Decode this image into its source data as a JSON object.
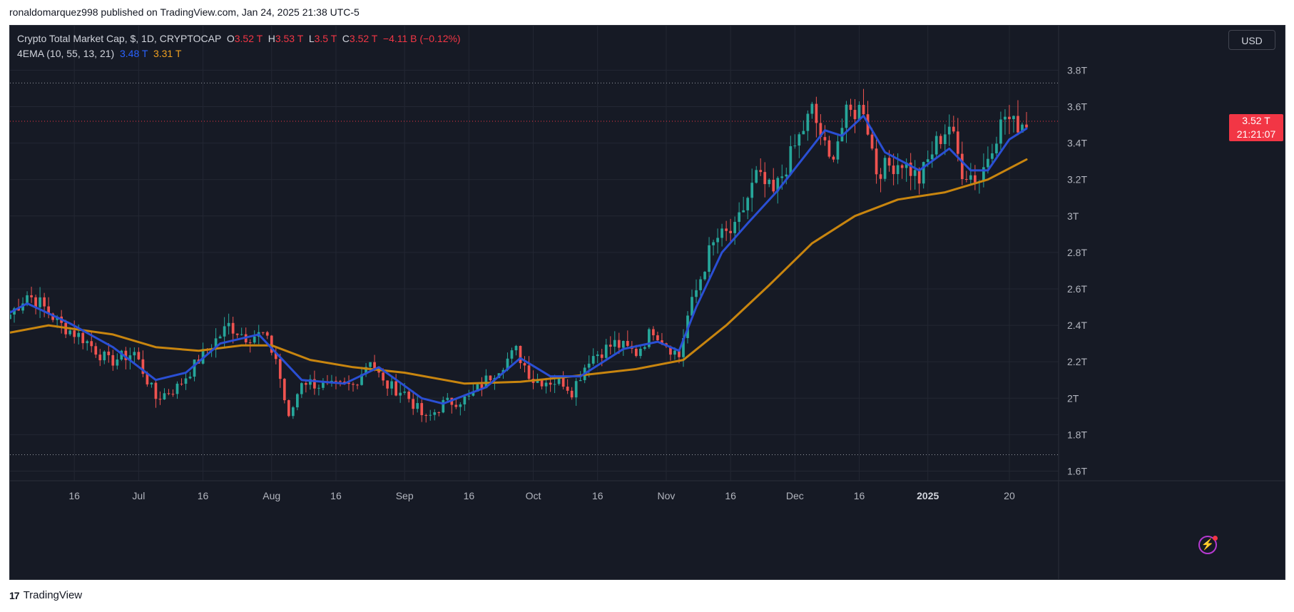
{
  "header": {
    "publish_text": "ronaldomarquez998 published on TradingView.com, Jan 24, 2025 21:38 UTC-5"
  },
  "legend": {
    "symbol": "Crypto Total Market Cap, $, 1D, CRYPTOCAP",
    "o_label": "O",
    "o_value": "3.52 T",
    "h_label": "H",
    "h_value": "3.53 T",
    "l_label": "L",
    "l_value": "3.5 T",
    "c_label": "C",
    "c_value": "3.52 T",
    "change": "−4.11 B (−0.12%)",
    "indicator": "4EMA (10, 55, 13, 21)",
    "ema_fast_value": "3.48 T",
    "ema_slow_value": "3.31 T"
  },
  "currency_button": "USD",
  "price_tag": {
    "price": "3.52 T",
    "countdown": "21:21:07"
  },
  "footer": {
    "brand": "TradingView",
    "logo_glyph": "17"
  },
  "icons": {
    "flash": "lightning-icon",
    "logo": "tradingview-logo-icon"
  },
  "colors": {
    "background": "#161a25",
    "grid": "#232733",
    "up": "#26a69a",
    "down": "#ef5350",
    "ema_fast": "#2a4fd4",
    "ema_slow": "#c8850f",
    "price_line": "#f23645",
    "text": "#b2b5be"
  },
  "chart_data": {
    "type": "candlestick",
    "title": "Crypto Total Market Cap, $, 1D, CRYPTOCAP",
    "y_axis": {
      "ticks": [
        "1.6T",
        "1.8T",
        "2T",
        "2.2T",
        "2.4T",
        "2.6T",
        "2.8T",
        "3T",
        "3.2T",
        "3.4T",
        "3.6T",
        "3.8T"
      ],
      "tick_values": [
        1.6,
        1.8,
        2.0,
        2.2,
        2.4,
        2.6,
        2.8,
        3.0,
        3.2,
        3.4,
        3.6,
        3.8
      ],
      "range": [
        1.5,
        3.88
      ],
      "unit": "T USD"
    },
    "x_axis": {
      "labels": [
        {
          "text": "16",
          "date": "2024-06-16",
          "bold": false
        },
        {
          "text": "Jul",
          "date": "2024-07-01",
          "bold": false
        },
        {
          "text": "16",
          "date": "2024-07-16",
          "bold": false
        },
        {
          "text": "Aug",
          "date": "2024-08-01",
          "bold": false
        },
        {
          "text": "16",
          "date": "2024-08-16",
          "bold": false
        },
        {
          "text": "Sep",
          "date": "2024-09-01",
          "bold": false
        },
        {
          "text": "16",
          "date": "2024-09-16",
          "bold": false
        },
        {
          "text": "Oct",
          "date": "2024-10-01",
          "bold": false
        },
        {
          "text": "16",
          "date": "2024-10-16",
          "bold": false
        },
        {
          "text": "Nov",
          "date": "2024-11-01",
          "bold": false
        },
        {
          "text": "16",
          "date": "2024-11-16",
          "bold": false
        },
        {
          "text": "Dec",
          "date": "2024-12-01",
          "bold": false
        },
        {
          "text": "16",
          "date": "2024-12-16",
          "bold": false
        },
        {
          "text": "2025",
          "date": "2025-01-01",
          "bold": true
        },
        {
          "text": "20",
          "date": "2025-01-20",
          "bold": false
        }
      ],
      "range": [
        "2024-06-01",
        "2025-01-24"
      ]
    },
    "horizontal_lines": [
      {
        "value": 3.73,
        "style": "dotted"
      },
      {
        "value": 1.69,
        "style": "dotted"
      }
    ],
    "current_price": 3.52,
    "close_anchors": [
      {
        "date": "2024-06-01",
        "close": 2.46
      },
      {
        "date": "2024-06-05",
        "close": 2.57
      },
      {
        "date": "2024-06-08",
        "close": 2.52
      },
      {
        "date": "2024-06-13",
        "close": 2.4
      },
      {
        "date": "2024-06-18",
        "close": 2.33
      },
      {
        "date": "2024-06-24",
        "close": 2.2
      },
      {
        "date": "2024-06-30",
        "close": 2.25
      },
      {
        "date": "2024-07-05",
        "close": 2.0
      },
      {
        "date": "2024-07-10",
        "close": 2.06
      },
      {
        "date": "2024-07-16",
        "close": 2.24
      },
      {
        "date": "2024-07-22",
        "close": 2.4
      },
      {
        "date": "2024-07-26",
        "close": 2.34
      },
      {
        "date": "2024-07-30",
        "close": 2.35
      },
      {
        "date": "2024-08-02",
        "close": 2.22
      },
      {
        "date": "2024-08-05",
        "close": 1.88
      },
      {
        "date": "2024-08-08",
        "close": 2.1
      },
      {
        "date": "2024-08-14",
        "close": 2.06
      },
      {
        "date": "2024-08-20",
        "close": 2.07
      },
      {
        "date": "2024-08-24",
        "close": 2.22
      },
      {
        "date": "2024-08-27",
        "close": 2.08
      },
      {
        "date": "2024-09-01",
        "close": 2.03
      },
      {
        "date": "2024-09-06",
        "close": 1.88
      },
      {
        "date": "2024-09-10",
        "close": 1.97
      },
      {
        "date": "2024-09-16",
        "close": 2.0
      },
      {
        "date": "2024-09-20",
        "close": 2.1
      },
      {
        "date": "2024-09-27",
        "close": 2.26
      },
      {
        "date": "2024-10-01",
        "close": 2.1
      },
      {
        "date": "2024-10-08",
        "close": 2.09
      },
      {
        "date": "2024-10-10",
        "close": 2.04
      },
      {
        "date": "2024-10-14",
        "close": 2.22
      },
      {
        "date": "2024-10-20",
        "close": 2.3
      },
      {
        "date": "2024-10-25",
        "close": 2.25
      },
      {
        "date": "2024-10-29",
        "close": 2.38
      },
      {
        "date": "2024-11-01",
        "close": 2.3
      },
      {
        "date": "2024-11-04",
        "close": 2.23
      },
      {
        "date": "2024-11-06",
        "close": 2.45
      },
      {
        "date": "2024-11-11",
        "close": 2.8
      },
      {
        "date": "2024-11-13",
        "close": 2.88
      },
      {
        "date": "2024-11-17",
        "close": 2.92
      },
      {
        "date": "2024-11-22",
        "close": 3.22
      },
      {
        "date": "2024-11-26",
        "close": 3.12
      },
      {
        "date": "2024-12-01",
        "close": 3.38
      },
      {
        "date": "2024-12-05",
        "close": 3.58
      },
      {
        "date": "2024-12-09",
        "close": 3.3
      },
      {
        "date": "2024-12-13",
        "close": 3.55
      },
      {
        "date": "2024-12-17",
        "close": 3.6
      },
      {
        "date": "2024-12-20",
        "close": 3.25
      },
      {
        "date": "2024-12-26",
        "close": 3.3
      },
      {
        "date": "2024-12-30",
        "close": 3.2
      },
      {
        "date": "2025-01-03",
        "close": 3.4
      },
      {
        "date": "2025-01-06",
        "close": 3.5
      },
      {
        "date": "2025-01-09",
        "close": 3.25
      },
      {
        "date": "2025-01-13",
        "close": 3.2
      },
      {
        "date": "2025-01-16",
        "close": 3.4
      },
      {
        "date": "2025-01-19",
        "close": 3.55
      },
      {
        "date": "2025-01-21",
        "close": 3.5
      },
      {
        "date": "2025-01-24",
        "close": 3.52
      }
    ],
    "ema_fast": {
      "label": "3.48 T",
      "points": [
        {
          "date": "2024-06-01",
          "value": 2.47
        },
        {
          "date": "2024-06-05",
          "value": 2.52
        },
        {
          "date": "2024-06-15",
          "value": 2.41
        },
        {
          "date": "2024-06-25",
          "value": 2.28
        },
        {
          "date": "2024-07-05",
          "value": 2.1
        },
        {
          "date": "2024-07-12",
          "value": 2.14
        },
        {
          "date": "2024-07-20",
          "value": 2.3
        },
        {
          "date": "2024-07-29",
          "value": 2.35
        },
        {
          "date": "2024-08-04",
          "value": 2.2
        },
        {
          "date": "2024-08-08",
          "value": 2.1
        },
        {
          "date": "2024-08-18",
          "value": 2.08
        },
        {
          "date": "2024-08-26",
          "value": 2.17
        },
        {
          "date": "2024-09-05",
          "value": 2.0
        },
        {
          "date": "2024-09-10",
          "value": 1.97
        },
        {
          "date": "2024-09-20",
          "value": 2.06
        },
        {
          "date": "2024-09-28",
          "value": 2.22
        },
        {
          "date": "2024-10-05",
          "value": 2.12
        },
        {
          "date": "2024-10-12",
          "value": 2.12
        },
        {
          "date": "2024-10-22",
          "value": 2.27
        },
        {
          "date": "2024-10-30",
          "value": 2.31
        },
        {
          "date": "2024-11-04",
          "value": 2.26
        },
        {
          "date": "2024-11-08",
          "value": 2.5
        },
        {
          "date": "2024-11-14",
          "value": 2.8
        },
        {
          "date": "2024-11-20",
          "value": 2.96
        },
        {
          "date": "2024-11-27",
          "value": 3.14
        },
        {
          "date": "2024-12-04",
          "value": 3.35
        },
        {
          "date": "2024-12-08",
          "value": 3.47
        },
        {
          "date": "2024-12-12",
          "value": 3.44
        },
        {
          "date": "2024-12-17",
          "value": 3.55
        },
        {
          "date": "2024-12-22",
          "value": 3.35
        },
        {
          "date": "2024-12-30",
          "value": 3.25
        },
        {
          "date": "2025-01-06",
          "value": 3.37
        },
        {
          "date": "2025-01-11",
          "value": 3.25
        },
        {
          "date": "2025-01-15",
          "value": 3.25
        },
        {
          "date": "2025-01-20",
          "value": 3.42
        },
        {
          "date": "2025-01-24",
          "value": 3.48
        }
      ]
    },
    "ema_slow": {
      "label": "3.31 T",
      "points": [
        {
          "date": "2024-06-01",
          "value": 2.36
        },
        {
          "date": "2024-06-10",
          "value": 2.4
        },
        {
          "date": "2024-06-25",
          "value": 2.35
        },
        {
          "date": "2024-07-05",
          "value": 2.28
        },
        {
          "date": "2024-07-15",
          "value": 2.26
        },
        {
          "date": "2024-07-25",
          "value": 2.29
        },
        {
          "date": "2024-08-01",
          "value": 2.29
        },
        {
          "date": "2024-08-10",
          "value": 2.21
        },
        {
          "date": "2024-08-20",
          "value": 2.17
        },
        {
          "date": "2024-09-01",
          "value": 2.14
        },
        {
          "date": "2024-09-15",
          "value": 2.08
        },
        {
          "date": "2024-09-28",
          "value": 2.09
        },
        {
          "date": "2024-10-10",
          "value": 2.12
        },
        {
          "date": "2024-10-25",
          "value": 2.16
        },
        {
          "date": "2024-11-05",
          "value": 2.21
        },
        {
          "date": "2024-11-15",
          "value": 2.4
        },
        {
          "date": "2024-11-25",
          "value": 2.62
        },
        {
          "date": "2024-12-05",
          "value": 2.85
        },
        {
          "date": "2024-12-15",
          "value": 3.0
        },
        {
          "date": "2024-12-25",
          "value": 3.09
        },
        {
          "date": "2025-01-05",
          "value": 3.13
        },
        {
          "date": "2025-01-15",
          "value": 3.2
        },
        {
          "date": "2025-01-24",
          "value": 3.31
        }
      ]
    }
  }
}
